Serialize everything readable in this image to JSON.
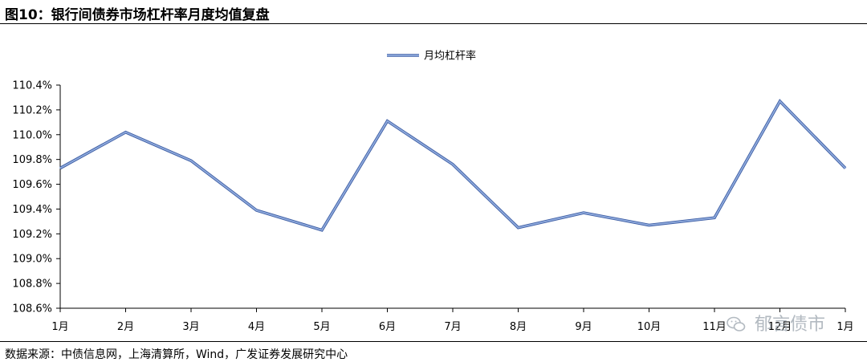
{
  "figure": {
    "title": "图10：银行间债券市场杠杆率月度均值复盘",
    "source": "数据来源：中债信息网，上海清算所，Wind，广发证券发展研究中心"
  },
  "watermark": {
    "text": "郁言债市",
    "icon": "wechat-icon"
  },
  "colors": {
    "line": "#8FAADC",
    "line_edge": "#3F5FA5",
    "axis": "#000000"
  },
  "chart_data": {
    "type": "line",
    "categories": [
      "1月",
      "2月",
      "3月",
      "4月",
      "5月",
      "6月",
      "7月",
      "8月",
      "9月",
      "10月",
      "11月",
      "12月",
      "1月"
    ],
    "series": [
      {
        "name": "月均杠杆率",
        "values": [
          109.73,
          110.02,
          109.79,
          109.39,
          109.23,
          110.11,
          109.76,
          109.25,
          109.37,
          109.27,
          109.33,
          110.27,
          109.73
        ]
      }
    ],
    "yticks": [
      "108.6%",
      "108.8%",
      "109.0%",
      "109.2%",
      "109.4%",
      "109.6%",
      "109.8%",
      "110.0%",
      "110.2%",
      "110.4%"
    ],
    "ylim": [
      108.6,
      110.4
    ],
    "legend": "top-center",
    "grid": false
  }
}
